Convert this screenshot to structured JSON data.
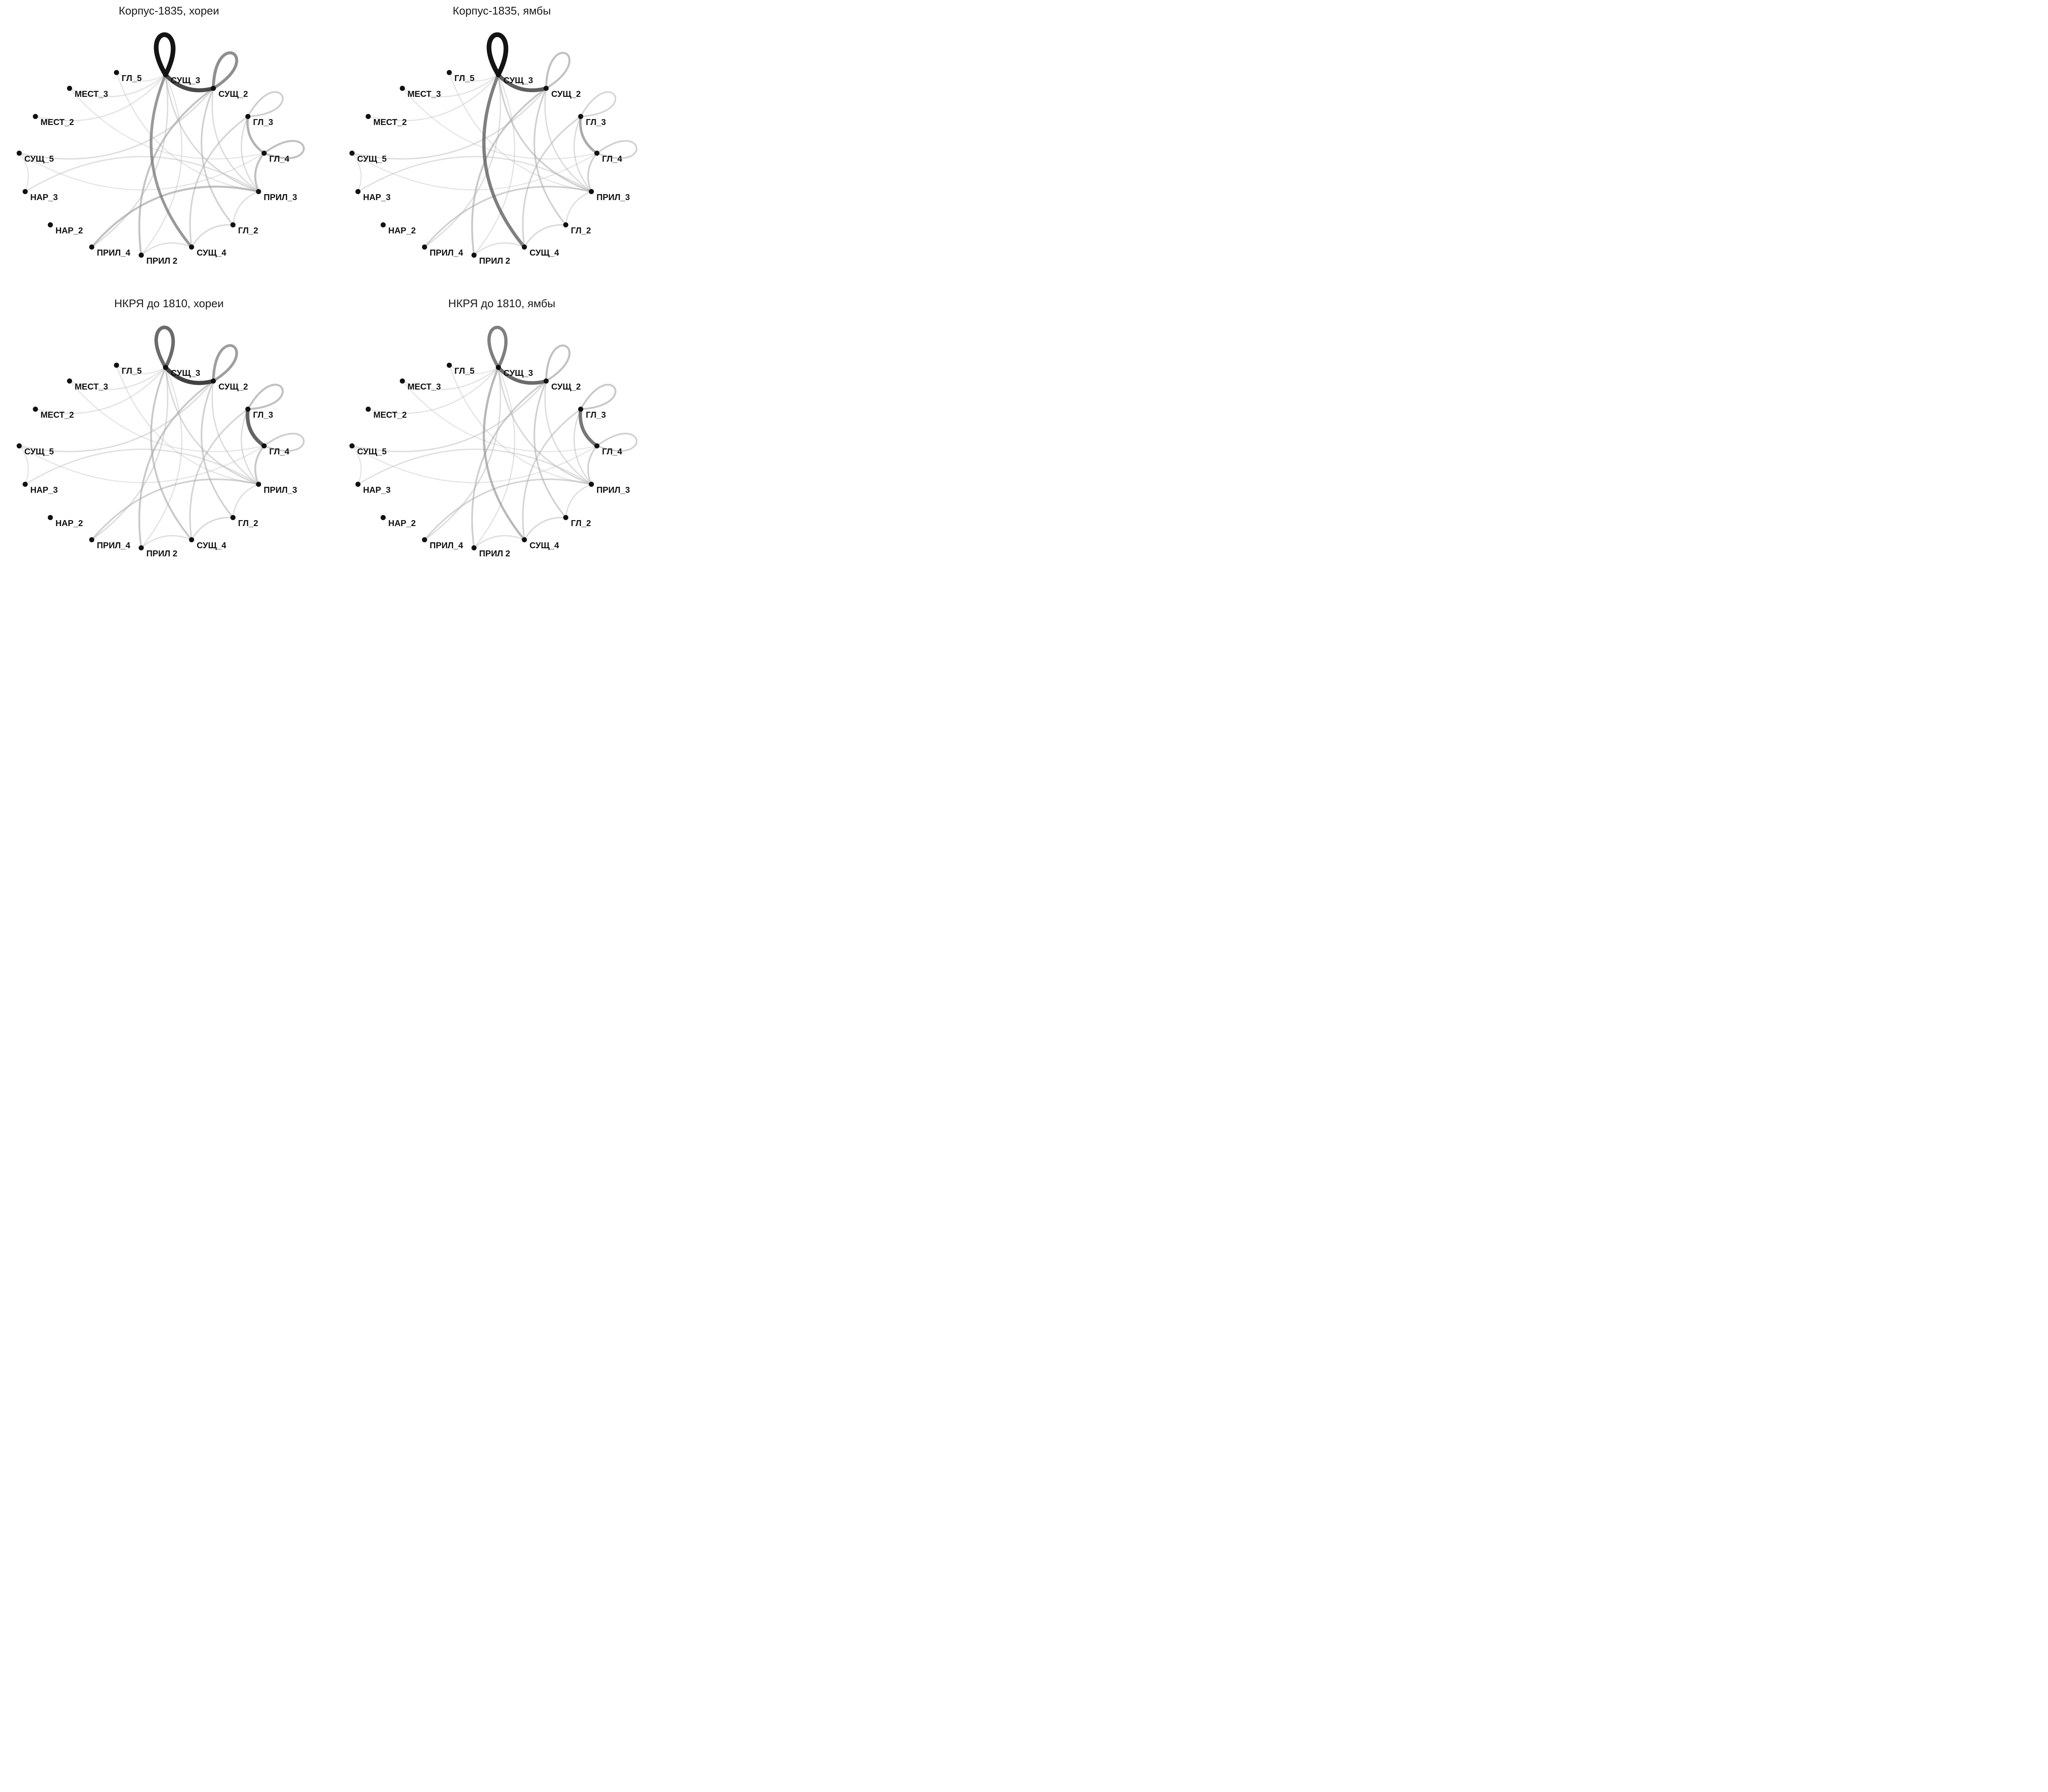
{
  "figure": {
    "nodes": [
      {
        "id": "n1",
        "label": "СУЩ_3"
      },
      {
        "id": "n2",
        "label": "СУЩ_2"
      },
      {
        "id": "n3",
        "label": "ГЛ_3"
      },
      {
        "id": "n4",
        "label": "ГЛ_4"
      },
      {
        "id": "n5",
        "label": "ПРИЛ_3"
      },
      {
        "id": "n6",
        "label": "ГЛ_2"
      },
      {
        "id": "n7",
        "label": "СУЩ_4"
      },
      {
        "id": "n8",
        "label": "ПРИЛ 2"
      },
      {
        "id": "n9",
        "label": "ПРИЛ_4"
      },
      {
        "id": "n10",
        "label": "НАР_2"
      },
      {
        "id": "n11",
        "label": "НАР_3"
      },
      {
        "id": "n12",
        "label": "СУЩ_5"
      },
      {
        "id": "n13",
        "label": "МЕСТ_2"
      },
      {
        "id": "n14",
        "label": "МЕСТ_3"
      },
      {
        "id": "n15",
        "label": "ГЛ_5"
      }
    ],
    "panels": [
      {
        "title": "Корпус-1835, хореи",
        "edges": [
          {
            "from": "n1",
            "to": "n1",
            "weight": 1.0
          },
          {
            "from": "n1",
            "to": "n2",
            "weight": 0.82
          },
          {
            "from": "n2",
            "to": "n2",
            "weight": 0.55
          },
          {
            "from": "n3",
            "to": "n3",
            "weight": 0.22
          },
          {
            "from": "n3",
            "to": "n4",
            "weight": 0.38
          },
          {
            "from": "n4",
            "to": "n4",
            "weight": 0.3
          },
          {
            "from": "n4",
            "to": "n5",
            "weight": 0.3
          },
          {
            "from": "n1",
            "to": "n7",
            "weight": 0.5
          },
          {
            "from": "n5",
            "to": "n9",
            "weight": 0.3
          },
          {
            "from": "n2",
            "to": "n8",
            "weight": 0.28
          },
          {
            "from": "n2",
            "to": "n6",
            "weight": 0.2
          },
          {
            "from": "n1",
            "to": "n5",
            "weight": 0.15
          },
          {
            "from": "n3",
            "to": "n7",
            "weight": 0.18
          },
          {
            "from": "n6",
            "to": "n7",
            "weight": 0.14
          },
          {
            "from": "n8",
            "to": "n7",
            "weight": 0.1
          },
          {
            "from": "n1",
            "to": "n9",
            "weight": 0.12
          },
          {
            "from": "n1",
            "to": "n8",
            "weight": 0.08
          },
          {
            "from": "n5",
            "to": "n6",
            "weight": 0.1
          },
          {
            "from": "n2",
            "to": "n12",
            "weight": 0.12
          },
          {
            "from": "n1",
            "to": "n13",
            "weight": 0.08
          },
          {
            "from": "n1",
            "to": "n14",
            "weight": 0.08
          },
          {
            "from": "n12",
            "to": "n11",
            "weight": 0.07
          },
          {
            "from": "n11",
            "to": "n5",
            "weight": 0.1
          },
          {
            "from": "n15",
            "to": "n5",
            "weight": 0.07
          },
          {
            "from": "n15",
            "to": "n1",
            "weight": 0.06
          },
          {
            "from": "n14",
            "to": "n4",
            "weight": 0.06
          },
          {
            "from": "n12",
            "to": "n4",
            "weight": 0.06
          },
          {
            "from": "n2",
            "to": "n5",
            "weight": 0.12
          },
          {
            "from": "n3",
            "to": "n5",
            "weight": 0.12
          }
        ]
      },
      {
        "title": "Корпус-1835, ямбы",
        "edges": [
          {
            "from": "n1",
            "to": "n1",
            "weight": 1.0
          },
          {
            "from": "n1",
            "to": "n2",
            "weight": 0.75
          },
          {
            "from": "n2",
            "to": "n2",
            "weight": 0.3
          },
          {
            "from": "n3",
            "to": "n3",
            "weight": 0.18
          },
          {
            "from": "n3",
            "to": "n4",
            "weight": 0.42
          },
          {
            "from": "n4",
            "to": "n4",
            "weight": 0.2
          },
          {
            "from": "n4",
            "to": "n5",
            "weight": 0.2
          },
          {
            "from": "n1",
            "to": "n7",
            "weight": 0.62
          },
          {
            "from": "n5",
            "to": "n9",
            "weight": 0.2
          },
          {
            "from": "n2",
            "to": "n8",
            "weight": 0.25
          },
          {
            "from": "n2",
            "to": "n6",
            "weight": 0.2
          },
          {
            "from": "n1",
            "to": "n5",
            "weight": 0.2
          },
          {
            "from": "n3",
            "to": "n7",
            "weight": 0.18
          },
          {
            "from": "n6",
            "to": "n7",
            "weight": 0.14
          },
          {
            "from": "n8",
            "to": "n7",
            "weight": 0.1
          },
          {
            "from": "n1",
            "to": "n9",
            "weight": 0.1
          },
          {
            "from": "n1",
            "to": "n8",
            "weight": 0.08
          },
          {
            "from": "n5",
            "to": "n6",
            "weight": 0.1
          },
          {
            "from": "n2",
            "to": "n12",
            "weight": 0.12
          },
          {
            "from": "n1",
            "to": "n13",
            "weight": 0.08
          },
          {
            "from": "n1",
            "to": "n14",
            "weight": 0.08
          },
          {
            "from": "n12",
            "to": "n11",
            "weight": 0.07
          },
          {
            "from": "n11",
            "to": "n5",
            "weight": 0.1
          },
          {
            "from": "n15",
            "to": "n5",
            "weight": 0.07
          },
          {
            "from": "n15",
            "to": "n1",
            "weight": 0.06
          },
          {
            "from": "n14",
            "to": "n4",
            "weight": 0.06
          },
          {
            "from": "n12",
            "to": "n4",
            "weight": 0.06
          },
          {
            "from": "n2",
            "to": "n5",
            "weight": 0.12
          },
          {
            "from": "n3",
            "to": "n5",
            "weight": 0.12
          }
        ]
      },
      {
        "title": "НКРЯ до 1810, хореи",
        "edges": [
          {
            "from": "n1",
            "to": "n1",
            "weight": 0.7
          },
          {
            "from": "n1",
            "to": "n2",
            "weight": 0.85
          },
          {
            "from": "n2",
            "to": "n2",
            "weight": 0.48
          },
          {
            "from": "n3",
            "to": "n3",
            "weight": 0.3
          },
          {
            "from": "n3",
            "to": "n4",
            "weight": 0.72
          },
          {
            "from": "n4",
            "to": "n4",
            "weight": 0.22
          },
          {
            "from": "n4",
            "to": "n5",
            "weight": 0.25
          },
          {
            "from": "n1",
            "to": "n7",
            "weight": 0.25
          },
          {
            "from": "n5",
            "to": "n9",
            "weight": 0.2
          },
          {
            "from": "n2",
            "to": "n8",
            "weight": 0.25
          },
          {
            "from": "n2",
            "to": "n6",
            "weight": 0.2
          },
          {
            "from": "n1",
            "to": "n5",
            "weight": 0.15
          },
          {
            "from": "n3",
            "to": "n7",
            "weight": 0.18
          },
          {
            "from": "n6",
            "to": "n7",
            "weight": 0.14
          },
          {
            "from": "n8",
            "to": "n7",
            "weight": 0.1
          },
          {
            "from": "n1",
            "to": "n9",
            "weight": 0.12
          },
          {
            "from": "n1",
            "to": "n8",
            "weight": 0.08
          },
          {
            "from": "n5",
            "to": "n6",
            "weight": 0.1
          },
          {
            "from": "n2",
            "to": "n12",
            "weight": 0.12
          },
          {
            "from": "n1",
            "to": "n13",
            "weight": 0.08
          },
          {
            "from": "n1",
            "to": "n14",
            "weight": 0.08
          },
          {
            "from": "n12",
            "to": "n11",
            "weight": 0.07
          },
          {
            "from": "n11",
            "to": "n5",
            "weight": 0.1
          },
          {
            "from": "n15",
            "to": "n5",
            "weight": 0.07
          },
          {
            "from": "n15",
            "to": "n1",
            "weight": 0.06
          },
          {
            "from": "n14",
            "to": "n4",
            "weight": 0.06
          },
          {
            "from": "n12",
            "to": "n4",
            "weight": 0.06
          },
          {
            "from": "n2",
            "to": "n5",
            "weight": 0.12
          },
          {
            "from": "n3",
            "to": "n5",
            "weight": 0.12
          }
        ]
      },
      {
        "title": "НКРЯ до 1810, ямбы",
        "edges": [
          {
            "from": "n1",
            "to": "n1",
            "weight": 0.62
          },
          {
            "from": "n1",
            "to": "n2",
            "weight": 0.7
          },
          {
            "from": "n2",
            "to": "n2",
            "weight": 0.3
          },
          {
            "from": "n3",
            "to": "n3",
            "weight": 0.25
          },
          {
            "from": "n3",
            "to": "n4",
            "weight": 0.65
          },
          {
            "from": "n4",
            "to": "n4",
            "weight": 0.2
          },
          {
            "from": "n4",
            "to": "n5",
            "weight": 0.2
          },
          {
            "from": "n1",
            "to": "n7",
            "weight": 0.35
          },
          {
            "from": "n5",
            "to": "n9",
            "weight": 0.18
          },
          {
            "from": "n2",
            "to": "n8",
            "weight": 0.22
          },
          {
            "from": "n2",
            "to": "n6",
            "weight": 0.2
          },
          {
            "from": "n1",
            "to": "n5",
            "weight": 0.15
          },
          {
            "from": "n3",
            "to": "n7",
            "weight": 0.18
          },
          {
            "from": "n6",
            "to": "n7",
            "weight": 0.14
          },
          {
            "from": "n8",
            "to": "n7",
            "weight": 0.1
          },
          {
            "from": "n1",
            "to": "n9",
            "weight": 0.12
          },
          {
            "from": "n1",
            "to": "n8",
            "weight": 0.08
          },
          {
            "from": "n5",
            "to": "n6",
            "weight": 0.1
          },
          {
            "from": "n2",
            "to": "n12",
            "weight": 0.12
          },
          {
            "from": "n1",
            "to": "n13",
            "weight": 0.08
          },
          {
            "from": "n1",
            "to": "n14",
            "weight": 0.08
          },
          {
            "from": "n12",
            "to": "n11",
            "weight": 0.07
          },
          {
            "from": "n11",
            "to": "n5",
            "weight": 0.1
          },
          {
            "from": "n15",
            "to": "n5",
            "weight": 0.07
          },
          {
            "from": "n15",
            "to": "n1",
            "weight": 0.06
          },
          {
            "from": "n14",
            "to": "n4",
            "weight": 0.06
          },
          {
            "from": "n12",
            "to": "n4",
            "weight": 0.06
          },
          {
            "from": "n2",
            "to": "n5",
            "weight": 0.12
          },
          {
            "from": "n3",
            "to": "n5",
            "weight": 0.12
          }
        ]
      }
    ]
  }
}
